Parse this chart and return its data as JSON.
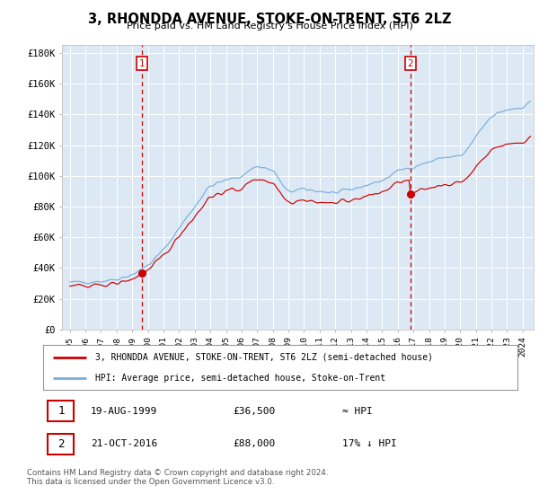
{
  "title": "3, RHONDDA AVENUE, STOKE-ON-TRENT, ST6 2LZ",
  "subtitle": "Price paid vs. HM Land Registry's House Price Index (HPI)",
  "bg_color": "#dce9f5",
  "red_line_color": "#cc0000",
  "blue_line_color": "#7aadda",
  "dashed_line_color": "#cc0000",
  "marker_color": "#cc0000",
  "legend_label_red": "3, RHONDDA AVENUE, STOKE-ON-TRENT, ST6 2LZ (semi-detached house)",
  "legend_label_blue": "HPI: Average price, semi-detached house, Stoke-on-Trent",
  "sale1_date": "19-AUG-1999",
  "sale1_price": "£36,500",
  "sale1_hpi": "≈ HPI",
  "sale1_year": 1999.63,
  "sale1_value": 36500,
  "sale2_date": "21-OCT-2016",
  "sale2_price": "£88,000",
  "sale2_hpi": "17% ↓ HPI",
  "sale2_year": 2016.8,
  "sale2_value": 88000,
  "footer": "Contains HM Land Registry data © Crown copyright and database right 2024.\nThis data is licensed under the Open Government Licence v3.0.",
  "ylim": [
    0,
    185000
  ],
  "yticks": [
    0,
    20000,
    40000,
    60000,
    80000,
    100000,
    120000,
    140000,
    160000,
    180000
  ],
  "ytick_labels": [
    "£0",
    "£20K",
    "£40K",
    "£60K",
    "£80K",
    "£100K",
    "£120K",
    "£140K",
    "£160K",
    "£180K"
  ],
  "xmin": 1994.5,
  "xmax": 2024.7
}
